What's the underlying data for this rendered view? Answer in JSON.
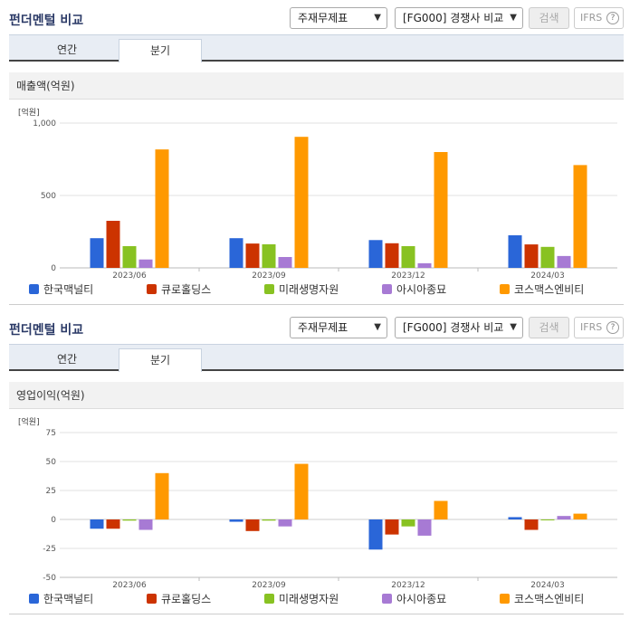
{
  "sections": [
    {
      "title": "펀더멘털 비교",
      "select1": "주재무제표",
      "select2": "[FG000] 경쟁사 비교",
      "search": "검색",
      "ifrs": "IFRS",
      "ifrs_help": "?",
      "tabs": [
        "연간",
        "분기"
      ],
      "active_tab": 1,
      "chart_title": "매출액(억원)",
      "unit": "[억원]"
    },
    {
      "title": "펀더멘털 비교",
      "select1": "주재무제표",
      "select2": "[FG000] 경쟁사 비교",
      "search": "검색",
      "ifrs": "IFRS",
      "ifrs_help": "?",
      "tabs": [
        "연간",
        "분기"
      ],
      "active_tab": 1,
      "chart_title": "영업이익(억원)",
      "unit": "[억원]"
    }
  ],
  "colors": {
    "series": [
      "#2a66d8",
      "#cc3300",
      "#88c222",
      "#a77ad4",
      "#ff9900"
    ],
    "gridline": "#e2e2e2",
    "axis": "#bbb"
  },
  "chart_data": [
    {
      "type": "bar",
      "title": "매출액(억원)",
      "ylabel": "[억원]",
      "categories": [
        "2023/06",
        "2023/09",
        "2023/12",
        "2024/03"
      ],
      "ylim": [
        0,
        1000
      ],
      "yticks": [
        0,
        500,
        1000
      ],
      "ytick_labels": [
        "0",
        "500",
        "1,000"
      ],
      "grid": true,
      "legend": "bottom",
      "series": [
        {
          "name": "한국맥널티",
          "values": [
            205,
            205,
            192,
            225
          ]
        },
        {
          "name": "큐로홀딩스",
          "values": [
            325,
            168,
            170,
            162
          ]
        },
        {
          "name": "미래생명자원",
          "values": [
            150,
            163,
            150,
            145
          ]
        },
        {
          "name": "아시아종묘",
          "values": [
            58,
            75,
            32,
            82
          ]
        },
        {
          "name": "코스맥스엔비티",
          "values": [
            818,
            905,
            800,
            710
          ]
        }
      ]
    },
    {
      "type": "bar",
      "title": "영업이익(억원)",
      "ylabel": "[억원]",
      "categories": [
        "2023/06",
        "2023/09",
        "2023/12",
        "2024/03"
      ],
      "ylim": [
        -50,
        75
      ],
      "yticks": [
        -50,
        -25,
        0,
        25,
        50,
        75
      ],
      "ytick_labels": [
        "-50",
        "-25",
        "0",
        "25",
        "50",
        "75"
      ],
      "grid": true,
      "legend": "bottom",
      "series": [
        {
          "name": "한국맥널티",
          "values": [
            -8,
            -2,
            -26,
            2
          ]
        },
        {
          "name": "큐로홀딩스",
          "values": [
            -8,
            -10,
            -13,
            -9
          ]
        },
        {
          "name": "미래생명자원",
          "values": [
            -1,
            -1,
            -6,
            0
          ]
        },
        {
          "name": "아시아종묘",
          "values": [
            -9,
            -6,
            -14,
            3
          ]
        },
        {
          "name": "코스맥스엔비티",
          "values": [
            40,
            48,
            16,
            5
          ]
        }
      ]
    }
  ]
}
